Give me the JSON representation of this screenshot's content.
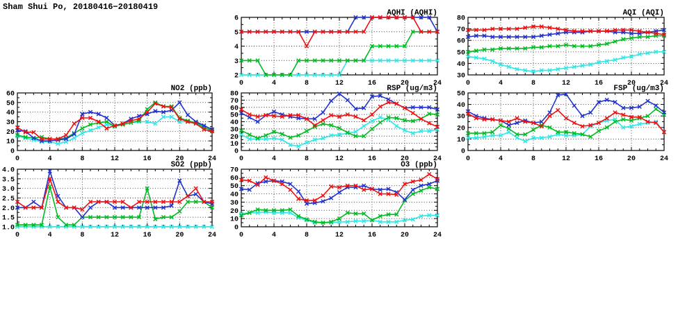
{
  "page": {
    "title": "Sham Shui Po, 20180416−20180419"
  },
  "colors": {
    "red": "#ee1111",
    "blue": "#2233cc",
    "green": "#00bb22",
    "cyan": "#33e6e6",
    "grid": "#333333"
  },
  "chart_data": [
    {
      "id": "aqhi",
      "type": "line",
      "title": "AQHI (AQHI)",
      "xlabel": "",
      "ylabel": "",
      "xlim": [
        0,
        24
      ],
      "xtick": 4,
      "xminor": 1,
      "ylim": [
        2,
        6
      ],
      "ytick": 1,
      "ydecimals": 0,
      "grid": true,
      "legend_position": "none",
      "x": [
        0,
        1,
        2,
        3,
        4,
        5,
        6,
        7,
        8,
        9,
        10,
        11,
        12,
        13,
        14,
        15,
        16,
        17,
        18,
        19,
        20,
        21,
        22,
        23,
        24
      ],
      "series": [
        {
          "name": "cyan",
          "color": "cyan",
          "values": [
            2,
            2,
            2,
            2,
            2,
            2,
            2,
            2,
            2,
            2,
            2,
            2,
            2,
            3,
            3,
            3,
            3,
            3,
            3,
            3,
            3,
            3,
            3,
            3,
            3
          ]
        },
        {
          "name": "green",
          "color": "green",
          "values": [
            3,
            3,
            3,
            2,
            2,
            2,
            2,
            3,
            3,
            3,
            3,
            3,
            3,
            3,
            3,
            3,
            4,
            4,
            4,
            4,
            4,
            5,
            5,
            5,
            5
          ]
        },
        {
          "name": "blue",
          "color": "blue",
          "values": [
            5,
            5,
            5,
            5,
            5,
            5,
            5,
            5,
            5,
            5,
            5,
            5,
            5,
            5,
            6,
            6,
            6,
            6,
            6,
            6,
            6,
            6,
            6,
            6,
            5
          ]
        },
        {
          "name": "red",
          "color": "red",
          "values": [
            5,
            5,
            5,
            5,
            5,
            5,
            5,
            5,
            4,
            5,
            5,
            5,
            5,
            5,
            5,
            5,
            6,
            6,
            6,
            6,
            6,
            6,
            5,
            5,
            5
          ]
        }
      ]
    },
    {
      "id": "aqi",
      "type": "line",
      "title": "AQI (AQI)",
      "xlabel": "",
      "ylabel": "",
      "xlim": [
        0,
        24
      ],
      "xtick": 4,
      "xminor": 1,
      "ylim": [
        30,
        80
      ],
      "ytick": 10,
      "ydecimals": 0,
      "grid": true,
      "legend_position": "none",
      "x": [
        0,
        1,
        2,
        3,
        4,
        5,
        6,
        7,
        8,
        9,
        10,
        11,
        12,
        13,
        14,
        15,
        16,
        17,
        18,
        19,
        20,
        21,
        22,
        23,
        24
      ],
      "series": [
        {
          "name": "cyan",
          "color": "cyan",
          "values": [
            46,
            45,
            44,
            42,
            39,
            37,
            35,
            34,
            33,
            34,
            34,
            35,
            36,
            37,
            38,
            39,
            41,
            42,
            43,
            45,
            46,
            48,
            49,
            50,
            50
          ]
        },
        {
          "name": "green",
          "color": "green",
          "values": [
            50,
            51,
            52,
            52,
            53,
            53,
            53,
            53,
            54,
            54,
            55,
            55,
            56,
            55,
            55,
            55,
            56,
            57,
            59,
            61,
            62,
            63,
            63,
            64,
            64
          ]
        },
        {
          "name": "blue",
          "color": "blue",
          "values": [
            63,
            64,
            64,
            63,
            63,
            63,
            63,
            63,
            63,
            64,
            65,
            66,
            67,
            67,
            67,
            68,
            68,
            68,
            67,
            67,
            66,
            66,
            67,
            68,
            69
          ]
        },
        {
          "name": "red",
          "color": "red",
          "values": [
            69,
            69,
            69,
            70,
            70,
            70,
            70,
            71,
            72,
            72,
            71,
            70,
            69,
            68,
            68,
            68,
            68,
            68,
            69,
            69,
            69,
            68,
            67,
            66,
            65
          ]
        }
      ]
    },
    {
      "id": "no2",
      "type": "line",
      "title": "NO2 (ppb)",
      "xlabel": "",
      "ylabel": "",
      "xlim": [
        0,
        24
      ],
      "xtick": 4,
      "xminor": 1,
      "ylim": [
        0,
        60
      ],
      "ytick": 10,
      "ydecimals": 0,
      "grid": true,
      "legend_position": "none",
      "x": [
        0,
        1,
        2,
        3,
        4,
        5,
        6,
        7,
        8,
        9,
        10,
        11,
        12,
        13,
        14,
        15,
        16,
        17,
        18,
        19,
        20,
        21,
        22,
        23,
        24
      ],
      "series": [
        {
          "name": "cyan",
          "color": "cyan",
          "values": [
            15,
            13,
            11,
            9,
            9,
            7,
            9,
            13,
            18,
            21,
            24,
            27,
            26,
            27,
            29,
            30,
            30,
            28,
            35,
            35,
            30,
            30,
            29,
            25,
            20
          ]
        },
        {
          "name": "green",
          "color": "green",
          "values": [
            16,
            14,
            13,
            14,
            12,
            12,
            13,
            18,
            23,
            27,
            29,
            30,
            25,
            27,
            29,
            31,
            43,
            50,
            46,
            46,
            34,
            31,
            29,
            24,
            21
          ]
        },
        {
          "name": "blue",
          "color": "blue",
          "values": [
            21,
            20,
            13,
            10,
            10,
            11,
            12,
            17,
            38,
            40,
            38,
            34,
            26,
            28,
            33,
            36,
            38,
            41,
            40,
            42,
            50,
            37,
            30,
            26,
            22
          ]
        },
        {
          "name": "red",
          "color": "red",
          "values": [
            24,
            19,
            19,
            12,
            12,
            12,
            16,
            28,
            34,
            34,
            30,
            23,
            26,
            28,
            31,
            33,
            40,
            49,
            46,
            45,
            33,
            30,
            28,
            22,
            20
          ]
        }
      ]
    },
    {
      "id": "rsp",
      "type": "line",
      "title": "RSP (ug/m3)",
      "xlabel": "",
      "ylabel": "",
      "xlim": [
        0,
        24
      ],
      "xtick": 4,
      "xminor": 1,
      "ylim": [
        0,
        80
      ],
      "ytick": 10,
      "ydecimals": 0,
      "grid": true,
      "legend_position": "none",
      "x": [
        0,
        1,
        2,
        3,
        4,
        5,
        6,
        7,
        8,
        9,
        10,
        11,
        12,
        13,
        14,
        15,
        16,
        17,
        18,
        19,
        20,
        21,
        22,
        23,
        24
      ],
      "series": [
        {
          "name": "cyan",
          "color": "cyan",
          "values": [
            22,
            16,
            16,
            16,
            17,
            15,
            8,
            6,
            11,
            15,
            17,
            21,
            22,
            24,
            26,
            34,
            41,
            46,
            43,
            34,
            28,
            24,
            27,
            27,
            29
          ]
        },
        {
          "name": "green",
          "color": "green",
          "values": [
            28,
            22,
            17,
            21,
            26,
            23,
            18,
            21,
            27,
            33,
            37,
            35,
            31,
            25,
            20,
            20,
            30,
            39,
            46,
            45,
            42,
            41,
            44,
            51,
            50
          ]
        },
        {
          "name": "blue",
          "color": "blue",
          "values": [
            52,
            46,
            40,
            49,
            54,
            50,
            47,
            45,
            44,
            44,
            53,
            69,
            79,
            70,
            58,
            59,
            75,
            76,
            71,
            65,
            59,
            60,
            60,
            60,
            57
          ]
        },
        {
          "name": "red",
          "color": "red",
          "values": [
            57,
            50,
            47,
            49,
            48,
            47,
            49,
            49,
            44,
            35,
            42,
            49,
            47,
            50,
            47,
            42,
            50,
            61,
            67,
            65,
            59,
            52,
            44,
            38,
            33
          ]
        }
      ]
    },
    {
      "id": "fsp",
      "type": "line",
      "title": "FSP (ug/m3)",
      "xlabel": "",
      "ylabel": "",
      "xlim": [
        0,
        24
      ],
      "xtick": 4,
      "xminor": 1,
      "ylim": [
        0,
        50
      ],
      "ytick": 10,
      "ydecimals": 0,
      "grid": true,
      "legend_position": "none",
      "x": [
        0,
        1,
        2,
        3,
        4,
        5,
        6,
        7,
        8,
        9,
        10,
        11,
        12,
        13,
        14,
        15,
        16,
        17,
        18,
        19,
        20,
        21,
        22,
        23,
        24
      ],
      "series": [
        {
          "name": "cyan",
          "color": "cyan",
          "values": [
            11,
            11,
            12,
            13,
            13,
            16,
            11,
            8,
            11,
            11,
            12,
            14,
            13,
            13,
            14,
            21,
            24,
            26,
            27,
            20,
            21,
            23,
            24,
            25,
            16
          ]
        },
        {
          "name": "green",
          "color": "green",
          "values": [
            15,
            15,
            15,
            16,
            22,
            19,
            14,
            14,
            18,
            22,
            20,
            16,
            16,
            15,
            14,
            12,
            17,
            20,
            25,
            27,
            26,
            28,
            30,
            36,
            31
          ]
        },
        {
          "name": "blue",
          "color": "blue",
          "values": [
            34,
            30,
            28,
            27,
            26,
            22,
            24,
            26,
            24,
            25,
            33,
            48,
            49,
            39,
            30,
            33,
            42,
            44,
            42,
            37,
            37,
            38,
            43,
            39,
            33
          ]
        },
        {
          "name": "red",
          "color": "red",
          "values": [
            32,
            28,
            27,
            27,
            26,
            25,
            28,
            25,
            24,
            21,
            30,
            35,
            28,
            24,
            21,
            22,
            24,
            28,
            33,
            31,
            29,
            29,
            25,
            24,
            16
          ]
        }
      ]
    },
    {
      "id": "so2",
      "type": "line",
      "title": "SO2 (ppb)",
      "xlabel": "",
      "ylabel": "",
      "xlim": [
        0,
        24
      ],
      "xtick": 4,
      "xminor": 1,
      "ylim": [
        1.0,
        4.0
      ],
      "ytick": 0.5,
      "ydecimals": 1,
      "grid": true,
      "legend_position": "none",
      "x": [
        0,
        1,
        2,
        3,
        4,
        5,
        6,
        7,
        8,
        9,
        10,
        11,
        12,
        13,
        14,
        15,
        16,
        17,
        18,
        19,
        20,
        21,
        22,
        23,
        24
      ],
      "series": [
        {
          "name": "cyan",
          "color": "cyan",
          "values": [
            1.0,
            1.0,
            1.0,
            1.0,
            1.0,
            1.0,
            1.0,
            1.0,
            1.0,
            1.0,
            1.0,
            1.0,
            1.0,
            1.0,
            1.0,
            1.0,
            1.0,
            1.0,
            1.0,
            1.0,
            1.0,
            1.0,
            1.0,
            1.0,
            1.0
          ]
        },
        {
          "name": "green",
          "color": "green",
          "values": [
            1.1,
            1.1,
            1.1,
            1.1,
            3.1,
            1.5,
            1.1,
            1.1,
            1.5,
            1.5,
            1.5,
            1.5,
            1.5,
            1.5,
            1.5,
            1.5,
            3.0,
            1.4,
            1.5,
            1.5,
            1.8,
            2.3,
            2.3,
            2.3,
            2.0
          ]
        },
        {
          "name": "blue",
          "color": "blue",
          "values": [
            2.0,
            2.0,
            2.3,
            2.0,
            3.9,
            2.6,
            2.0,
            2.0,
            1.5,
            2.0,
            2.3,
            2.3,
            2.0,
            2.0,
            2.0,
            2.0,
            2.0,
            2.0,
            2.0,
            2.1,
            3.4,
            2.6,
            2.7,
            2.3,
            2.2
          ]
        },
        {
          "name": "red",
          "color": "red",
          "values": [
            2.3,
            2.0,
            2.0,
            2.0,
            3.5,
            2.3,
            2.0,
            2.0,
            1.9,
            2.3,
            2.3,
            2.3,
            2.3,
            2.3,
            2.0,
            2.3,
            2.3,
            2.3,
            2.3,
            2.3,
            2.3,
            2.6,
            3.0,
            2.3,
            2.3
          ]
        }
      ]
    },
    {
      "id": "o3",
      "type": "line",
      "title": "O3 (ppb)",
      "xlabel": "",
      "ylabel": "",
      "xlim": [
        0,
        24
      ],
      "xtick": 4,
      "xminor": 1,
      "ylim": [
        0,
        70
      ],
      "ytick": 10,
      "ydecimals": 0,
      "grid": true,
      "legend_position": "none",
      "x": [
        0,
        1,
        2,
        3,
        4,
        5,
        6,
        7,
        8,
        9,
        10,
        11,
        12,
        13,
        14,
        15,
        16,
        17,
        18,
        19,
        20,
        21,
        22,
        23,
        24
      ],
      "series": [
        {
          "name": "cyan",
          "color": "cyan",
          "values": [
            16,
            17,
            17,
            18,
            17,
            17,
            17,
            11,
            8,
            5,
            5,
            5,
            6,
            6,
            7,
            7,
            8,
            6,
            6,
            6,
            8,
            9,
            13,
            14,
            14
          ]
        },
        {
          "name": "green",
          "color": "green",
          "values": [
            14,
            17,
            21,
            20,
            20,
            20,
            21,
            13,
            9,
            6,
            5,
            6,
            10,
            17,
            16,
            16,
            8,
            13,
            15,
            15,
            32,
            40,
            44,
            48,
            46
          ]
        },
        {
          "name": "blue",
          "color": "blue",
          "values": [
            46,
            45,
            53,
            55,
            56,
            55,
            52,
            43,
            28,
            29,
            31,
            35,
            42,
            48,
            48,
            50,
            46,
            45,
            46,
            42,
            33,
            45,
            50,
            52,
            56
          ]
        },
        {
          "name": "red",
          "color": "red",
          "values": [
            57,
            56,
            51,
            60,
            56,
            52,
            45,
            34,
            32,
            32,
            38,
            49,
            48,
            50,
            50,
            45,
            46,
            40,
            40,
            39,
            52,
            55,
            57,
            64,
            58
          ]
        }
      ]
    }
  ]
}
